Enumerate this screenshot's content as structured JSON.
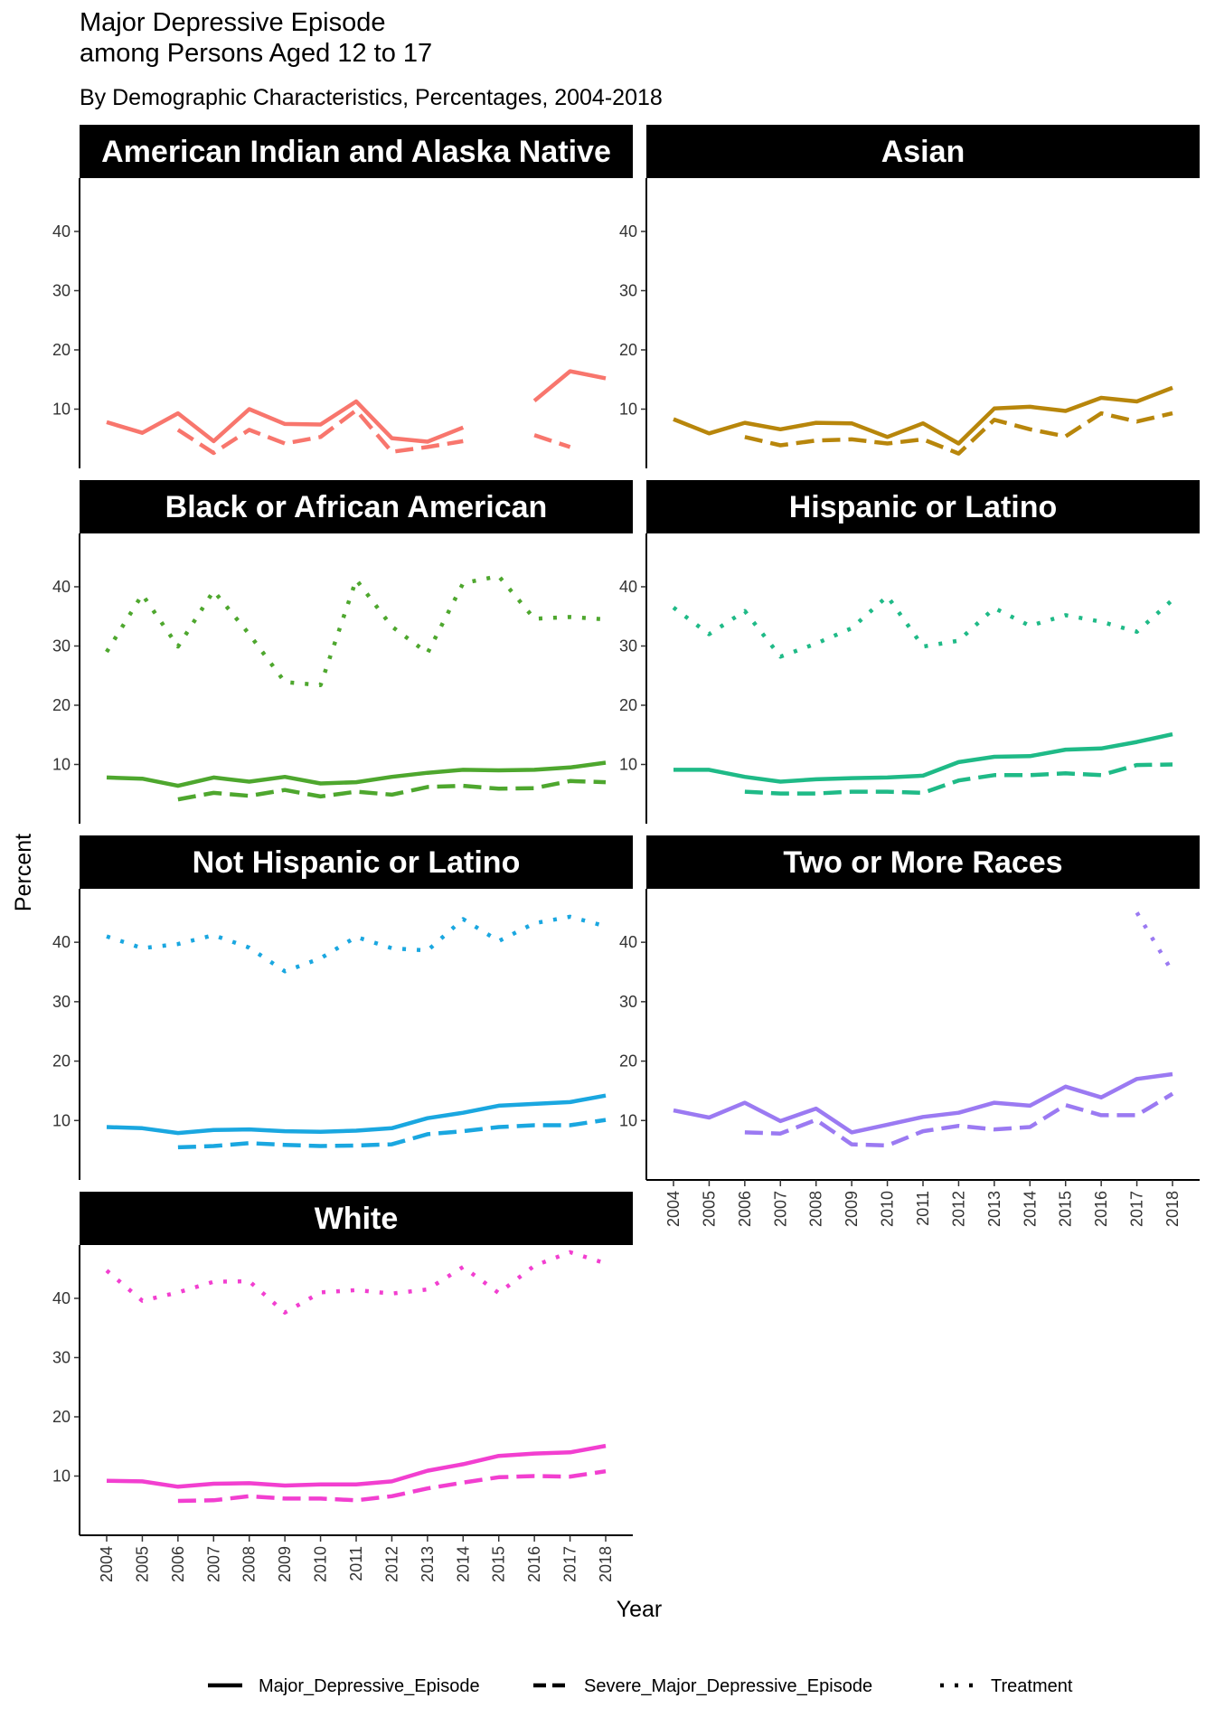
{
  "title_line1": "Major Depressive Episode",
  "title_line2": "among Persons Aged 12 to 17",
  "subtitle": "By Demographic Characteristics, Percentages, 2004-2018",
  "chart_data": {
    "type": "line",
    "xlabel": "Year",
    "ylabel": "Percent",
    "ylim": [
      0,
      49
    ],
    "y_ticks": [
      10,
      20,
      30,
      40
    ],
    "x_ticks": [
      "2004",
      "2005",
      "2006",
      "2007",
      "2008",
      "2009",
      "2010",
      "2011",
      "2012",
      "2013",
      "2014",
      "2015",
      "2016",
      "2017",
      "2018"
    ],
    "legend_position": "bottom",
    "legend": [
      {
        "name": "Major_Depressive_Episode",
        "linetype": "solid"
      },
      {
        "name": "Severe_Major_Depressive_Episode",
        "linetype": "dashed"
      },
      {
        "name": "Treatment",
        "linetype": "dotted"
      }
    ],
    "panels": [
      {
        "name": "American Indian and Alaska Native",
        "color": "#F8766D",
        "series": [
          {
            "name": "Major_Depressive_Episode",
            "values": [
              7.8,
              6.0,
              9.3,
              4.6,
              10.0,
              7.5,
              7.4,
              11.3,
              5.1,
              4.5,
              6.9,
              null,
              11.4,
              16.4,
              15.2
            ]
          },
          {
            "name": "Severe_Major_Depressive_Episode",
            "values": [
              null,
              null,
              6.5,
              2.6,
              6.5,
              4.2,
              5.3,
              9.8,
              2.8,
              3.6,
              4.6,
              null,
              5.6,
              3.6,
              null
            ]
          },
          {
            "name": "Treatment",
            "values": [
              null,
              null,
              null,
              null,
              null,
              null,
              null,
              null,
              null,
              null,
              null,
              null,
              null,
              null,
              null
            ]
          }
        ]
      },
      {
        "name": "Asian",
        "color": "#B8860B",
        "series": [
          {
            "name": "Major_Depressive_Episode",
            "values": [
              8.3,
              5.9,
              7.7,
              6.6,
              7.7,
              7.6,
              5.3,
              7.6,
              4.2,
              10.1,
              10.4,
              9.7,
              11.9,
              11.3,
              13.6
            ]
          },
          {
            "name": "Severe_Major_Depressive_Episode",
            "values": [
              null,
              null,
              5.3,
              3.9,
              4.7,
              4.9,
              4.2,
              4.9,
              2.5,
              8.2,
              6.6,
              5.4,
              9.3,
              7.9,
              9.3
            ]
          },
          {
            "name": "Treatment",
            "values": [
              null,
              null,
              null,
              null,
              null,
              null,
              null,
              null,
              null,
              null,
              null,
              null,
              null,
              null,
              null
            ]
          }
        ]
      },
      {
        "name": "Black or African American",
        "color": "#4EA72E",
        "series": [
          {
            "name": "Major_Depressive_Episode",
            "values": [
              7.8,
              7.6,
              6.4,
              7.8,
              7.1,
              7.9,
              6.8,
              7.0,
              7.9,
              8.6,
              9.1,
              9.0,
              9.1,
              9.5,
              10.3
            ]
          },
          {
            "name": "Severe_Major_Depressive_Episode",
            "values": [
              null,
              null,
              4.1,
              5.2,
              4.7,
              5.7,
              4.6,
              5.4,
              4.9,
              6.2,
              6.4,
              5.9,
              6.0,
              7.2,
              7.0
            ]
          },
          {
            "name": "Treatment",
            "values": [
              29.0,
              38.7,
              29.9,
              39.3,
              32.0,
              23.9,
              23.4,
              41.2,
              33.3,
              28.8,
              40.6,
              41.8,
              34.6,
              34.9,
              34.5
            ]
          }
        ]
      },
      {
        "name": "Hispanic or Latino",
        "color": "#1FBA87",
        "series": [
          {
            "name": "Major_Depressive_Episode",
            "values": [
              9.1,
              9.1,
              7.9,
              7.1,
              7.5,
              7.7,
              7.8,
              8.1,
              10.4,
              11.3,
              11.4,
              12.5,
              12.7,
              13.8,
              15.1
            ]
          },
          {
            "name": "Severe_Major_Depressive_Episode",
            "values": [
              null,
              null,
              5.4,
              5.1,
              5.1,
              5.4,
              5.4,
              5.2,
              7.3,
              8.2,
              8.2,
              8.5,
              8.2,
              9.9,
              10.0
            ]
          },
          {
            "name": "Treatment",
            "values": [
              36.5,
              32.0,
              35.9,
              28.2,
              30.4,
              33.0,
              38.4,
              29.9,
              30.9,
              36.4,
              33.4,
              35.2,
              34.1,
              32.4,
              37.8
            ]
          }
        ]
      },
      {
        "name": "Not Hispanic or Latino",
        "color": "#1AA7E0",
        "series": [
          {
            "name": "Major_Depressive_Episode",
            "values": [
              8.9,
              8.7,
              7.9,
              8.4,
              8.5,
              8.2,
              8.1,
              8.3,
              8.7,
              10.4,
              11.3,
              12.5,
              12.8,
              13.1,
              14.2
            ]
          },
          {
            "name": "Severe_Major_Depressive_Episode",
            "values": [
              null,
              null,
              5.5,
              5.7,
              6.2,
              5.9,
              5.7,
              5.8,
              6.0,
              7.7,
              8.2,
              8.9,
              9.2,
              9.2,
              10.1
            ]
          },
          {
            "name": "Treatment",
            "values": [
              41.0,
              39.0,
              39.7,
              41.2,
              39.1,
              35.1,
              37.3,
              40.9,
              39.0,
              38.6,
              43.9,
              40.2,
              43.2,
              44.3,
              42.7
            ]
          }
        ]
      },
      {
        "name": "Two or More Races",
        "color": "#9B7AF2",
        "series": [
          {
            "name": "Major_Depressive_Episode",
            "values": [
              11.7,
              10.5,
              13.0,
              9.9,
              12.0,
              8.0,
              9.3,
              10.6,
              11.3,
              13.0,
              12.5,
              15.7,
              13.9,
              17.0,
              17.8
            ]
          },
          {
            "name": "Severe_Major_Depressive_Episode",
            "values": [
              null,
              null,
              8.0,
              7.8,
              10.1,
              6.0,
              5.8,
              8.2,
              9.1,
              8.5,
              8.9,
              12.6,
              10.9,
              10.9,
              14.5
            ]
          },
          {
            "name": "Treatment",
            "values": [
              null,
              null,
              null,
              null,
              null,
              null,
              null,
              null,
              null,
              null,
              null,
              null,
              null,
              45.0,
              35.0
            ]
          }
        ]
      },
      {
        "name": "White",
        "color": "#F23FD0",
        "series": [
          {
            "name": "Major_Depressive_Episode",
            "values": [
              9.2,
              9.1,
              8.2,
              8.7,
              8.8,
              8.4,
              8.6,
              8.6,
              9.1,
              10.9,
              12.0,
              13.4,
              13.8,
              14.0,
              15.1
            ]
          },
          {
            "name": "Severe_Major_Depressive_Episode",
            "values": [
              null,
              null,
              5.8,
              5.9,
              6.6,
              6.2,
              6.2,
              5.9,
              6.6,
              7.9,
              8.9,
              9.8,
              10.0,
              9.9,
              10.8
            ]
          },
          {
            "name": "Treatment",
            "values": [
              44.7,
              39.6,
              41.0,
              42.8,
              42.9,
              37.6,
              41.0,
              41.4,
              40.8,
              41.5,
              45.3,
              40.9,
              45.5,
              47.8,
              45.9
            ]
          }
        ]
      }
    ]
  }
}
